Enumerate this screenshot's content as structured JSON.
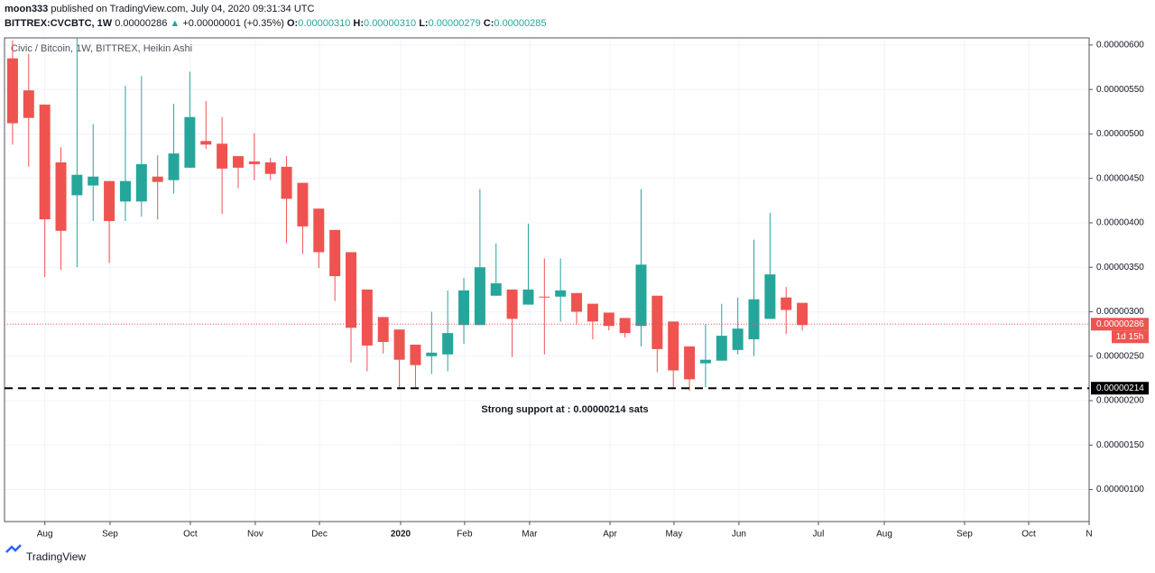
{
  "header": {
    "line1": {
      "author": "moon333",
      "text": "published on TradingView.com, July 04, 2020 09:31:34 UTC"
    },
    "line2": {
      "symbol": "BITTREX:CVCBTC, 1W",
      "last": "0.00000286",
      "arrow": "▲",
      "change": "+0.00000001 (+0.35%)",
      "o_label": "O:",
      "o": "0.00000310",
      "h_label": "H:",
      "h": "0.00000310",
      "l_label": "L:",
      "l": "0.00000279",
      "c_label": "C:",
      "c": "0.00000285"
    }
  },
  "footer": {
    "brand": "TradingView"
  },
  "chart_data": {
    "type": "candlestick",
    "title": "Civic / Bitcoin, 1W, BITTREX, Heikin Ashi",
    "up_color": "#26a69a",
    "down_color": "#ef5350",
    "grid": true,
    "open": [
      5.85e-06,
      5.49e-06,
      5.33e-06,
      4.68e-06,
      4.31e-06,
      4.42e-06,
      4.47e-06,
      4.24e-06,
      4.24e-06,
      4.52e-06,
      4.48e-06,
      4.62e-06,
      4.92e-06,
      4.89e-06,
      4.75e-06,
      4.69e-06,
      4.68e-06,
      4.63e-06,
      4.45e-06,
      4.16e-06,
      3.92e-06,
      3.67e-06,
      3.25e-06,
      2.94e-06,
      2.8e-06,
      2.63e-06,
      2.5e-06,
      2.52e-06,
      2.85e-06,
      2.85e-06,
      3.18e-06,
      3.25e-06,
      3.08e-06,
      3.17e-06,
      3.17e-06,
      3.21e-06,
      3.09e-06,
      2.99e-06,
      2.93e-06,
      2.84e-06,
      3.18e-06,
      2.89e-06,
      2.61e-06,
      2.42e-06,
      2.45e-06,
      2.57e-06,
      2.69e-06,
      2.92e-06,
      3.16e-06,
      3.1e-06
    ],
    "high": [
      6.05e-06,
      5.9e-06,
      5.33e-06,
      4.85e-06,
      6.08e-06,
      5.11e-06,
      4.47e-06,
      5.54e-06,
      5.65e-06,
      4.76e-06,
      5.34e-06,
      5.7e-06,
      5.37e-06,
      5.19e-06,
      4.75e-06,
      5.01e-06,
      4.73e-06,
      4.75e-06,
      4.45e-06,
      4.16e-06,
      3.92e-06,
      3.67e-06,
      3.25e-06,
      2.94e-06,
      2.8e-06,
      2.63e-06,
      3e-06,
      3.24e-06,
      3.38e-06,
      4.38e-06,
      3.77e-06,
      3.25e-06,
      3.99e-06,
      3.6e-06,
      3.6e-06,
      3.21e-06,
      3.09e-06,
      2.99e-06,
      2.93e-06,
      4.38e-06,
      3.18e-06,
      2.89e-06,
      2.61e-06,
      2.86e-06,
      3.09e-06,
      3.16e-06,
      3.81e-06,
      4.11e-06,
      3.28e-06,
      3.1e-06
    ],
    "low": [
      4.88e-06,
      4.63e-06,
      3.39e-06,
      3.47e-06,
      3.5e-06,
      4.02e-06,
      3.55e-06,
      4.02e-06,
      4.07e-06,
      4.04e-06,
      4.33e-06,
      4.62e-06,
      4.83e-06,
      4.1e-06,
      4.39e-06,
      4.48e-06,
      4.48e-06,
      3.77e-06,
      3.65e-06,
      3.49e-06,
      3.12e-06,
      2.43e-06,
      2.33e-06,
      2.53e-06,
      2.13e-06,
      2.15e-06,
      2.3e-06,
      2.33e-06,
      2.64e-06,
      2.85e-06,
      3.18e-06,
      2.49e-06,
      3.08e-06,
      2.52e-06,
      2.89e-06,
      2.86e-06,
      2.69e-06,
      2.79e-06,
      2.71e-06,
      2.61e-06,
      2.32e-06,
      2.13e-06,
      2.11e-06,
      2.15e-06,
      2.45e-06,
      2.52e-06,
      2.5e-06,
      2.92e-06,
      2.75e-06,
      2.79e-06
    ],
    "close": [
      5.12e-06,
      5.18e-06,
      4.04e-06,
      3.91e-06,
      4.54e-06,
      4.52e-06,
      4.02e-06,
      4.47e-06,
      4.66e-06,
      4.46e-06,
      4.78e-06,
      5.19e-06,
      4.88e-06,
      4.61e-06,
      4.62e-06,
      4.66e-06,
      4.55e-06,
      4.27e-06,
      3.96e-06,
      3.67e-06,
      3.4e-06,
      2.82e-06,
      2.62e-06,
      2.66e-06,
      2.46e-06,
      2.4e-06,
      2.54e-06,
      2.76e-06,
      3.24e-06,
      3.5e-06,
      3.32e-06,
      2.92e-06,
      3.25e-06,
      3.16e-06,
      3.24e-06,
      3e-06,
      2.89e-06,
      2.84e-06,
      2.76e-06,
      3.53e-06,
      2.58e-06,
      2.34e-06,
      2.24e-06,
      2.46e-06,
      2.73e-06,
      2.81e-06,
      3.14e-06,
      3.42e-06,
      3.02e-06,
      2.85e-06
    ],
    "ylim": [
      6.4e-07,
      6.08e-06
    ],
    "yticks": [
      {
        "value": 1e-06,
        "label": "0.00000100"
      },
      {
        "value": 1.5e-06,
        "label": "0.00000150"
      },
      {
        "value": 2e-06,
        "label": "0.00000200"
      },
      {
        "value": 2.5e-06,
        "label": "0.00000250"
      },
      {
        "value": 3e-06,
        "label": "0.00000300"
      },
      {
        "value": 3.5e-06,
        "label": "0.00000350"
      },
      {
        "value": 4e-06,
        "label": "0.00000400"
      },
      {
        "value": 4.5e-06,
        "label": "0.00000450"
      },
      {
        "value": 5e-06,
        "label": "0.00000500"
      },
      {
        "value": 5.5e-06,
        "label": "0.00000550"
      },
      {
        "value": 6e-06,
        "label": "0.00000600"
      }
    ],
    "xlim": [
      -0.5,
      66.8
    ],
    "xticks": [
      {
        "value": 2,
        "label": "Aug"
      },
      {
        "value": 6.05,
        "label": "Sep"
      },
      {
        "value": 11.03,
        "label": "Oct"
      },
      {
        "value": 15.06,
        "label": "Nov"
      },
      {
        "value": 19.04,
        "label": "Dec"
      },
      {
        "value": 24.08,
        "label": "2020"
      },
      {
        "value": 28.05,
        "label": "Feb"
      },
      {
        "value": 32.08,
        "label": "Mar"
      },
      {
        "value": 37.07,
        "label": "Apr"
      },
      {
        "value": 41.04,
        "label": "May"
      },
      {
        "value": 45.07,
        "label": "Jun"
      },
      {
        "value": 50,
        "label": "Jul"
      },
      {
        "value": 54.09,
        "label": "Aug"
      },
      {
        "value": 59.07,
        "label": "Sep"
      },
      {
        "value": 63.05,
        "label": "Oct"
      },
      {
        "value": 66.8,
        "label": "N"
      }
    ],
    "price_line": {
      "value": 2.86e-06,
      "label": "0.00000286",
      "countdown": "1d 15h",
      "color": "#ef5350"
    },
    "support_line": {
      "value": 2.14e-06,
      "label": "0.00000214",
      "color": "#000000"
    },
    "annotation": "Strong support at : 0.00000214 sats"
  }
}
